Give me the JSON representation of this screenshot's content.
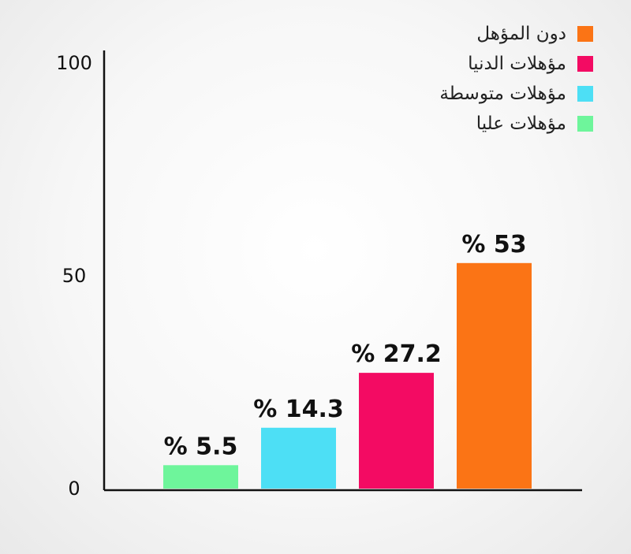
{
  "chart_data": {
    "type": "bar",
    "categories": [
      "مؤهلات عليا",
      "مؤهلات متوسطة",
      "مؤهلات الدنيا",
      "دون المؤهل"
    ],
    "values": [
      5.5,
      14.3,
      27.2,
      53
    ],
    "value_labels": [
      "% 5.5",
      "% 14.3",
      "% 27.2",
      "% 53"
    ],
    "colors": [
      "#6ef59b",
      "#4ddff5",
      "#f30b63",
      "#fb7415"
    ],
    "ylim": [
      0,
      100
    ],
    "yticks": [
      0,
      50,
      100
    ],
    "ytick_labels": [
      "0",
      "50",
      "100"
    ],
    "grid": false,
    "legend_position": "top-right",
    "legend": [
      {
        "label": "دون المؤهل",
        "color": "#fb7415"
      },
      {
        "label": "مؤهلات الدنيا",
        "color": "#f30b63"
      },
      {
        "label": "مؤهلات متوسطة",
        "color": "#4ddff5"
      },
      {
        "label": "مؤهلات عليا",
        "color": "#6ef59b"
      }
    ]
  }
}
